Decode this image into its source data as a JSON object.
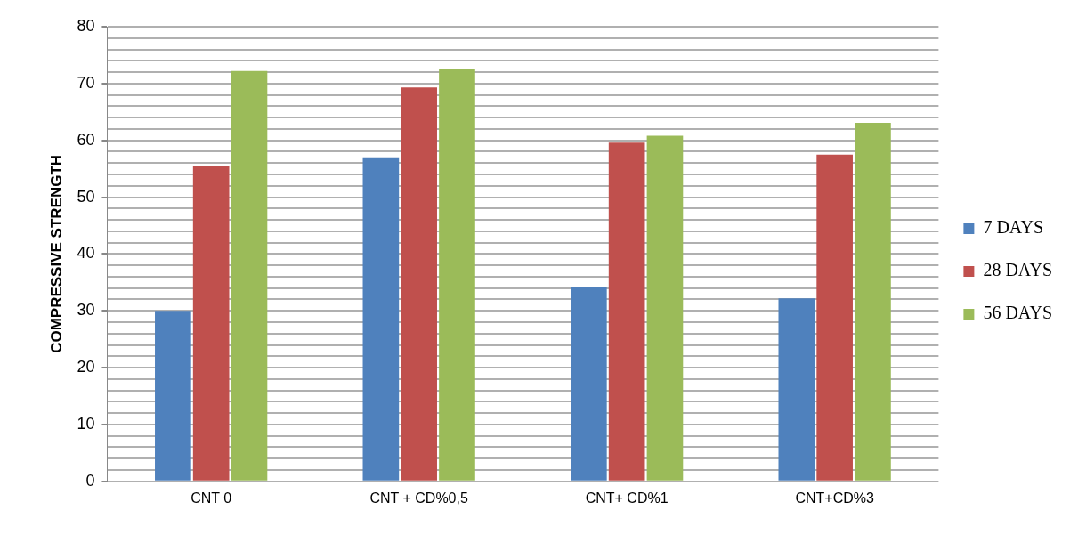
{
  "chart_data": {
    "type": "bar",
    "ylabel": "COMPRESSIVE STRENGTH",
    "categories": [
      "CNT 0",
      "CNT + CD%0,5",
      "CNT+ CD%1",
      "CNT+CD%3"
    ],
    "series": [
      {
        "name": "7 DAYS",
        "color": "#4f81bd",
        "values": [
          30,
          57,
          34.2,
          32.2
        ]
      },
      {
        "name": "28 DAYS",
        "color": "#c0504d",
        "values": [
          55.5,
          69.3,
          59.6,
          57.5
        ]
      },
      {
        "name": "56 DAYS",
        "color": "#9bbb59",
        "values": [
          72.2,
          72.5,
          60.8,
          63.1
        ]
      }
    ],
    "ylim": [
      0,
      80
    ],
    "yticks": [
      0,
      {
        "value": 2,
        "label": null
      },
      {
        "value": 4,
        "label": null
      },
      {
        "value": 6,
        "label": null
      },
      {
        "value": 8,
        "label": null
      },
      10,
      {
        "value": 12,
        "label": null
      },
      {
        "value": 14,
        "label": null
      },
      {
        "value": 16,
        "label": null
      },
      {
        "value": 18,
        "label": null
      },
      20,
      {
        "value": 22,
        "label": null
      },
      {
        "value": 24,
        "label": null
      },
      {
        "value": 26,
        "label": null
      },
      {
        "value": 28,
        "label": null
      },
      30,
      {
        "value": 32,
        "label": null
      },
      {
        "value": 34,
        "label": null
      },
      {
        "value": 36,
        "label": null
      },
      {
        "value": 38,
        "label": null
      },
      40,
      {
        "value": 42,
        "label": null
      },
      {
        "value": 44,
        "label": null
      },
      {
        "value": 46,
        "label": null
      },
      {
        "value": 48,
        "label": null
      },
      50,
      {
        "value": 52,
        "label": null
      },
      {
        "value": 54,
        "label": null
      },
      {
        "value": 56,
        "label": null
      },
      {
        "value": 58,
        "label": null
      },
      60,
      {
        "value": 62,
        "label": null
      },
      {
        "value": 64,
        "label": null
      },
      {
        "value": 66,
        "label": null
      },
      {
        "value": 68,
        "label": null
      },
      70,
      {
        "value": 72,
        "label": null
      },
      {
        "value": 74,
        "label": null
      },
      {
        "value": 76,
        "label": null
      },
      {
        "value": 78,
        "label": null
      },
      80
    ],
    "grid": "y",
    "legend": "right"
  }
}
